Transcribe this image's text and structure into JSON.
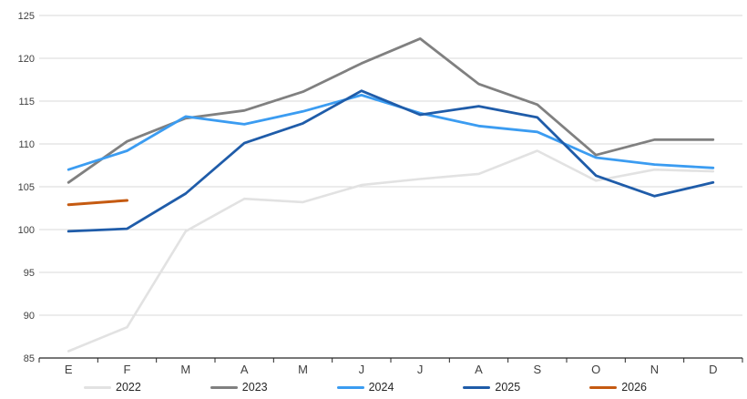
{
  "chart_data": {
    "type": "line",
    "x_labels": [
      "E",
      "F",
      "M",
      "A",
      "M",
      "J",
      "J",
      "A",
      "S",
      "O",
      "N",
      "D"
    ],
    "ylim": [
      85,
      125
    ],
    "ytick_step": 5,
    "grid": true,
    "legend_position": "bottom",
    "colors": {
      "gridline": "#D9D9D9",
      "axis_line": "#262626",
      "tick": "#262626",
      "axis_label": "#404040"
    },
    "series": [
      {
        "name": "2022",
        "color": "#E2E2E2",
        "stroke_width": 2.6,
        "values": [
          85.8,
          88.6,
          99.8,
          103.6,
          103.2,
          105.2,
          105.9,
          106.5,
          109.2,
          105.7,
          107.0,
          106.8
        ]
      },
      {
        "name": "2023",
        "color": "#808080",
        "stroke_width": 2.8,
        "values": [
          105.5,
          110.3,
          113.0,
          113.9,
          116.1,
          119.4,
          122.3,
          117.0,
          114.6,
          108.7,
          110.5,
          110.5
        ]
      },
      {
        "name": "2024",
        "color": "#3B9CF1",
        "stroke_width": 2.8,
        "values": [
          107.0,
          109.2,
          113.2,
          112.3,
          113.8,
          115.7,
          113.6,
          112.1,
          111.4,
          108.4,
          107.6,
          107.2
        ]
      },
      {
        "name": "2025",
        "color": "#1F5CA9",
        "stroke_width": 2.8,
        "values": [
          99.8,
          100.1,
          104.2,
          110.1,
          112.4,
          116.2,
          113.4,
          114.4,
          113.1,
          106.3,
          103.9,
          105.5
        ]
      },
      {
        "name": "2026",
        "color": "#C55A11",
        "stroke_width": 3,
        "values": [
          102.9,
          103.4,
          null,
          null,
          null,
          null,
          null,
          null,
          null,
          null,
          null,
          null
        ]
      }
    ]
  }
}
